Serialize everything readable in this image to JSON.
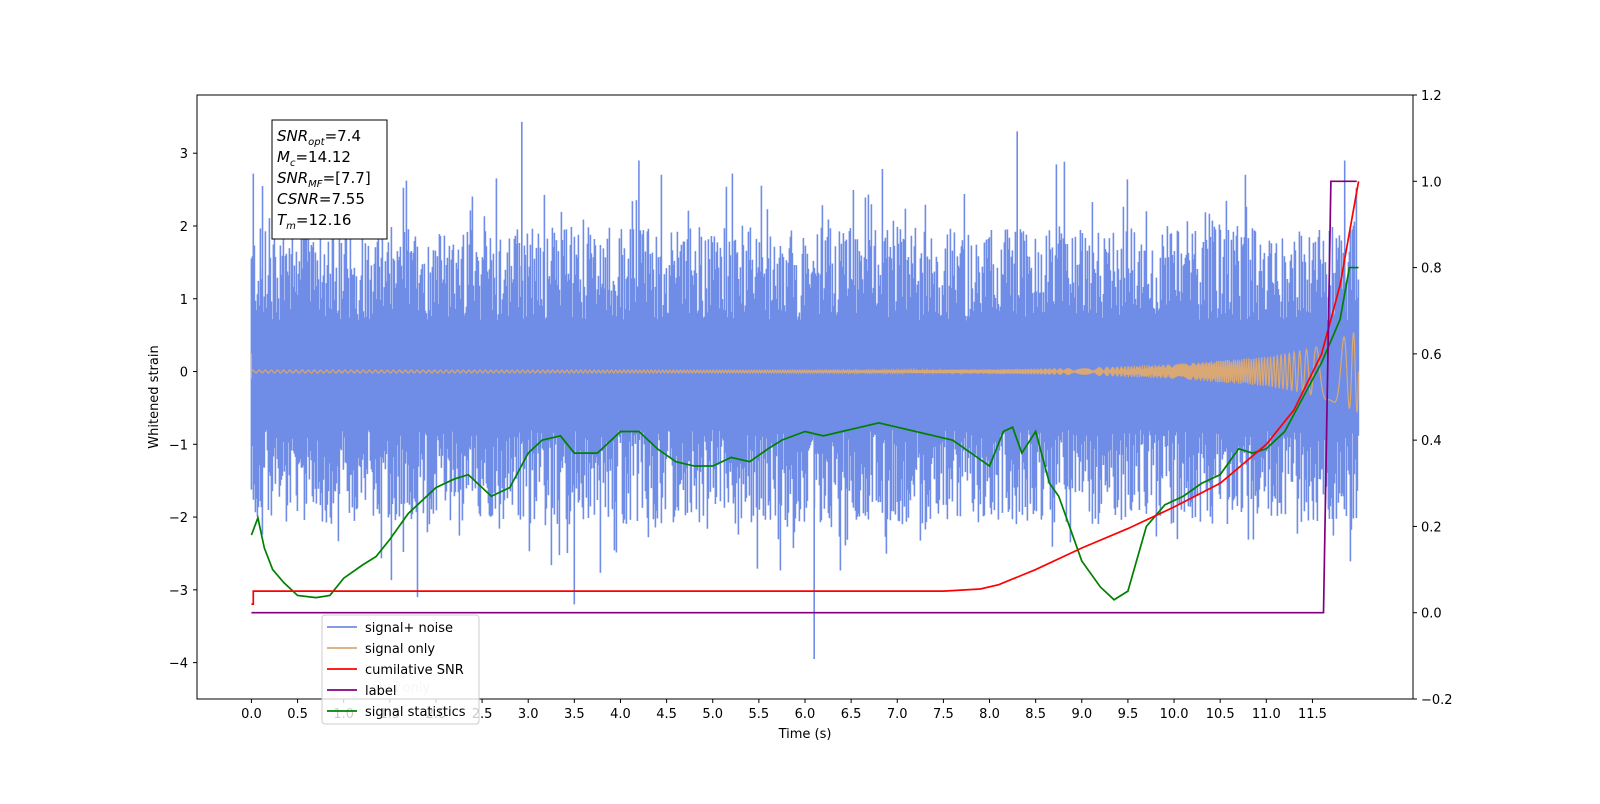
{
  "chart_data": {
    "type": "line",
    "xlabel": "Time (s)",
    "ylabel_left": "Whitened strain",
    "xlim": [
      -0.59,
      12.59
    ],
    "xticks": [
      0.0,
      0.5,
      1.0,
      1.5,
      2.0,
      2.5,
      3.0,
      3.5,
      4.0,
      4.5,
      5.0,
      5.5,
      6.0,
      6.5,
      7.0,
      7.5,
      8.0,
      8.5,
      9.0,
      9.5,
      10.0,
      10.5,
      11.0,
      11.5
    ],
    "xtick_labels": [
      "0.0",
      "0.5",
      "1.0",
      "1.5",
      "2.0",
      "2.5",
      "3.0",
      "3.5",
      "4.0",
      "4.5",
      "5.0",
      "5.5",
      "6.0",
      "6.5",
      "7.0",
      "7.5",
      "8.0",
      "8.5",
      "9.0",
      "9.5",
      "10.0",
      "10.5",
      "11.0",
      "11.5"
    ],
    "ylim_left": [
      -4.5,
      3.8
    ],
    "yticks_left": [
      -4,
      -3,
      -2,
      -1,
      0,
      1,
      2,
      3
    ],
    "ytick_labels_left": [
      "−4",
      "−3",
      "−2",
      "−1",
      "0",
      "1",
      "2",
      "3"
    ],
    "ylim_right": [
      -0.2,
      1.2
    ],
    "yticks_right": [
      -0.2,
      0.0,
      0.2,
      0.4,
      0.6,
      0.8,
      1.0,
      1.2
    ],
    "ytick_labels_right": [
      "−0.2",
      "0.0",
      "0.2",
      "0.4",
      "0.6",
      "0.8",
      "1.0",
      "1.2"
    ],
    "grid": false,
    "legend_position": "lower-left",
    "series": [
      {
        "name": "signal+ noise",
        "axis": "left",
        "color": "#6f8de6",
        "duration": 12.0,
        "baseline_low": -1.3,
        "baseline_high": 1.3,
        "peaks": [
          {
            "t": 0.02,
            "y": 2.72
          },
          {
            "t": 0.12,
            "y": 2.55
          },
          {
            "t": 2.93,
            "y": 3.43
          },
          {
            "t": 8.3,
            "y": 3.3
          },
          {
            "t": 6.1,
            "y": -3.95
          },
          {
            "t": 3.5,
            "y": -3.2
          },
          {
            "t": 4.2,
            "y": 2.9
          },
          {
            "t": 11.85,
            "y": 2.9
          },
          {
            "t": 1.8,
            "y": -3.1
          }
        ]
      },
      {
        "name": "signal only",
        "axis": "left",
        "color": "#d9a874",
        "envelope": [
          {
            "t": 0.0,
            "a": 0.02
          },
          {
            "t": 7.0,
            "a": 0.02
          },
          {
            "t": 8.0,
            "a": 0.03
          },
          {
            "t": 9.0,
            "a": 0.05
          },
          {
            "t": 10.0,
            "a": 0.1
          },
          {
            "t": 11.0,
            "a": 0.2
          },
          {
            "t": 11.5,
            "a": 0.32
          },
          {
            "t": 11.8,
            "a": 0.45
          },
          {
            "t": 12.0,
            "a": 0.57
          }
        ]
      },
      {
        "name": "cumilative SNR",
        "axis": "right",
        "color": "#ff0000",
        "x": [
          0.0,
          0.02,
          0.02,
          7.0,
          7.5,
          7.9,
          8.1,
          8.5,
          9.0,
          9.5,
          10.0,
          10.5,
          11.0,
          11.3,
          11.6,
          11.8,
          12.0
        ],
        "y": [
          0.02,
          0.02,
          0.05,
          0.05,
          0.05,
          0.055,
          0.065,
          0.1,
          0.15,
          0.195,
          0.245,
          0.3,
          0.39,
          0.47,
          0.6,
          0.76,
          1.0
        ]
      },
      {
        "name": "label",
        "axis": "right",
        "color": "#800080",
        "x": [
          0.0,
          11.62,
          11.7,
          11.7,
          11.98
        ],
        "y": [
          0.0,
          0.0,
          1.0,
          1.0,
          1.0
        ]
      },
      {
        "name": "label only",
        "axis": "right",
        "color": "#808080",
        "hidden_behind_legend": true
      },
      {
        "name": "signal statistics",
        "axis": "right",
        "color": "#008000",
        "x": [
          0.0,
          0.07,
          0.14,
          0.23,
          0.35,
          0.5,
          0.7,
          0.85,
          1.0,
          1.2,
          1.35,
          1.5,
          1.7,
          1.85,
          2.0,
          2.2,
          2.35,
          2.6,
          2.8,
          3.0,
          3.15,
          3.35,
          3.5,
          3.75,
          4.0,
          4.2,
          4.4,
          4.6,
          4.8,
          5.0,
          5.2,
          5.4,
          5.6,
          5.75,
          6.0,
          6.2,
          6.4,
          6.6,
          6.8,
          7.0,
          7.2,
          7.4,
          7.6,
          7.8,
          8.0,
          8.15,
          8.25,
          8.35,
          8.5,
          8.65,
          8.75,
          8.9,
          9.0,
          9.2,
          9.35,
          9.5,
          9.7,
          9.9,
          10.1,
          10.3,
          10.5,
          10.7,
          10.85,
          11.0,
          11.2,
          11.4,
          11.6,
          11.8,
          11.9,
          12.0
        ],
        "y": [
          0.18,
          0.22,
          0.15,
          0.1,
          0.07,
          0.04,
          0.035,
          0.04,
          0.08,
          0.11,
          0.13,
          0.17,
          0.23,
          0.26,
          0.29,
          0.31,
          0.32,
          0.27,
          0.29,
          0.37,
          0.4,
          0.41,
          0.37,
          0.37,
          0.42,
          0.42,
          0.38,
          0.35,
          0.34,
          0.34,
          0.36,
          0.35,
          0.38,
          0.4,
          0.42,
          0.41,
          0.42,
          0.43,
          0.44,
          0.43,
          0.42,
          0.41,
          0.4,
          0.37,
          0.34,
          0.42,
          0.43,
          0.37,
          0.42,
          0.3,
          0.27,
          0.18,
          0.12,
          0.06,
          0.03,
          0.05,
          0.2,
          0.25,
          0.27,
          0.3,
          0.32,
          0.38,
          0.37,
          0.38,
          0.42,
          0.5,
          0.58,
          0.68,
          0.8,
          0.8
        ]
      }
    ],
    "info_box": {
      "lines": [
        {
          "base": "SNR",
          "sub": "opt",
          "value": "=7.4"
        },
        {
          "base": "M",
          "sub": "c",
          "value": "=14.12"
        },
        {
          "base": "SNR",
          "sub": "MF",
          "value": "=[7.7]"
        },
        {
          "base": "CSNR",
          "sub": "",
          "value": "=7.55"
        },
        {
          "base": "T",
          "sub": "m",
          "value": "=12.16"
        }
      ]
    }
  }
}
